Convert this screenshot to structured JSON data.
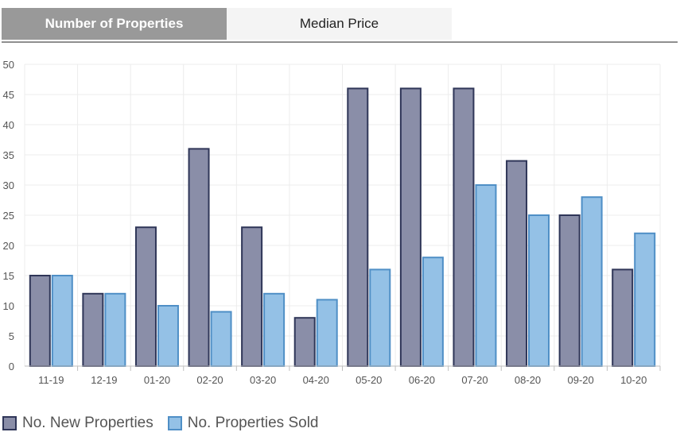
{
  "tabs": [
    {
      "label": "Number of Properties",
      "active": true
    },
    {
      "label": "Median Price",
      "active": false
    }
  ],
  "colors": {
    "new_fill": "#8a8ea8",
    "new_border": "#2f3658",
    "sold_fill": "#94c1e6",
    "sold_border": "#4f8fc6",
    "grid": "#ececec",
    "axis": "#bfbfbf",
    "tick_text": "#555555"
  },
  "chart_data": {
    "type": "bar",
    "categories": [
      "11-19",
      "12-19",
      "01-20",
      "02-20",
      "03-20",
      "04-20",
      "05-20",
      "06-20",
      "07-20",
      "08-20",
      "09-20",
      "10-20"
    ],
    "series": [
      {
        "name": "No. New Properties",
        "values": [
          15,
          12,
          23,
          36,
          23,
          8,
          46,
          46,
          46,
          34,
          25,
          16
        ]
      },
      {
        "name": "No. Properties Sold",
        "values": [
          15,
          12,
          10,
          9,
          12,
          11,
          16,
          18,
          30,
          25,
          28,
          22
        ]
      }
    ],
    "ylim": [
      0,
      50
    ],
    "yticks": [
      0,
      5,
      10,
      15,
      20,
      25,
      30,
      35,
      40,
      45,
      50
    ],
    "grid": true,
    "legend_position": "bottom-left"
  }
}
